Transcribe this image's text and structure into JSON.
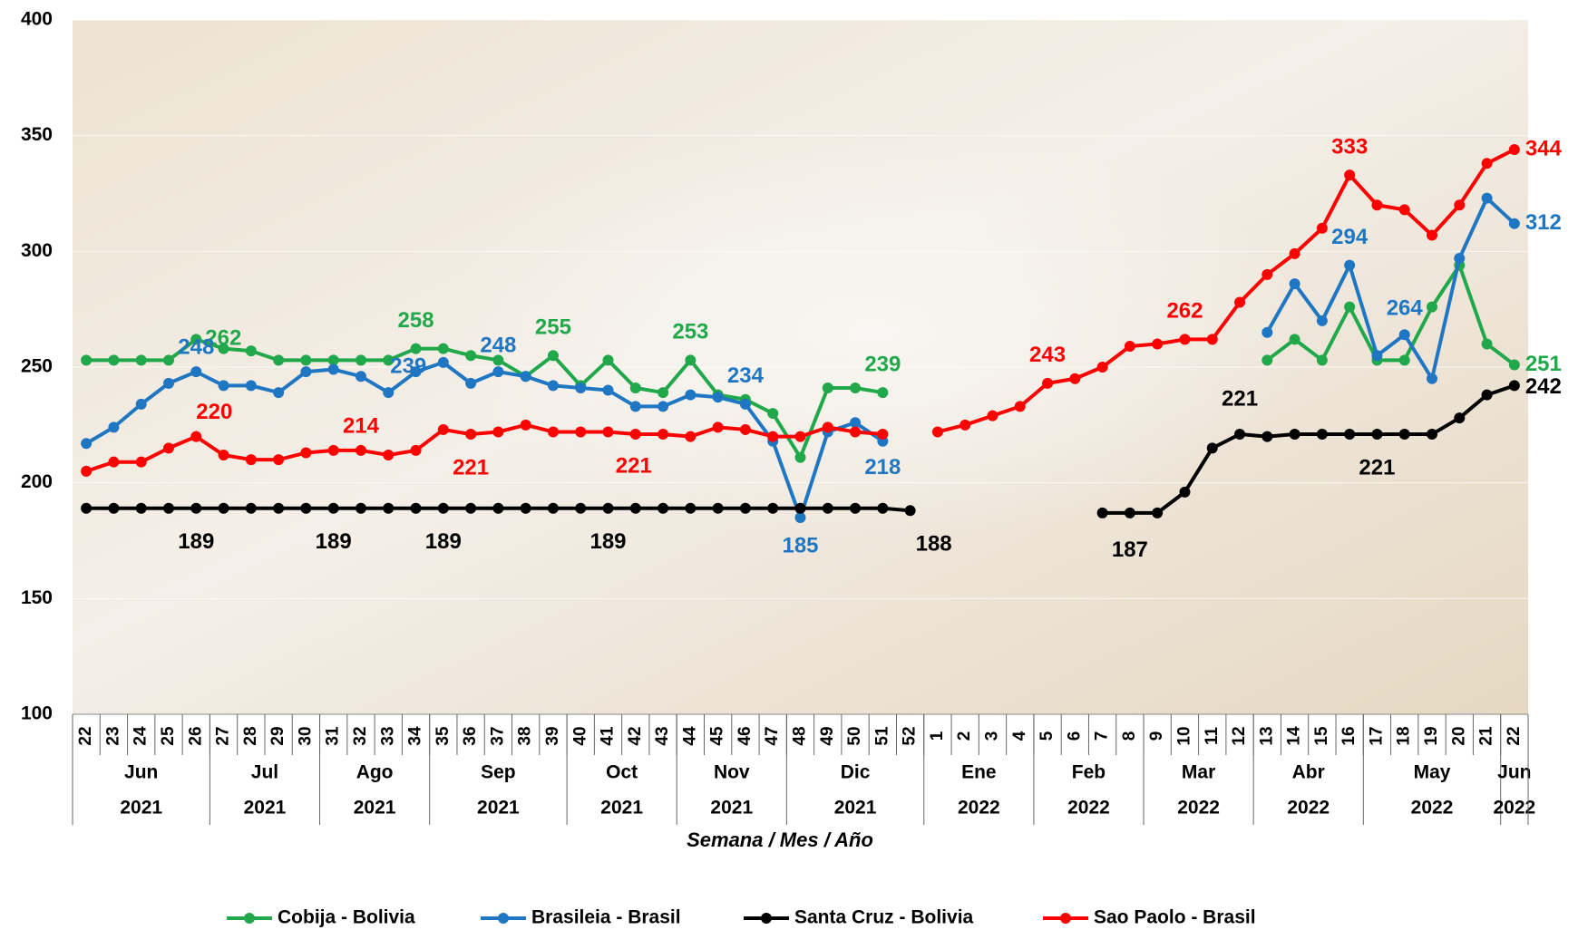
{
  "chart_data": {
    "type": "line",
    "x_label": "Semana / Mes / Año",
    "groups": [
      {
        "month": "Jun",
        "year": "2021",
        "weeks": [
          "22",
          "23",
          "24",
          "25",
          "26"
        ]
      },
      {
        "month": "Jul",
        "year": "2021",
        "weeks": [
          "27",
          "28",
          "29",
          "30"
        ]
      },
      {
        "month": "Ago",
        "year": "2021",
        "weeks": [
          "31",
          "32",
          "33",
          "34"
        ]
      },
      {
        "month": "Sep",
        "year": "2021",
        "weeks": [
          "35",
          "36",
          "37",
          "38",
          "39"
        ]
      },
      {
        "month": "Oct",
        "year": "2021",
        "weeks": [
          "40",
          "41",
          "42",
          "43"
        ]
      },
      {
        "month": "Nov",
        "year": "2021",
        "weeks": [
          "44",
          "45",
          "46",
          "47"
        ]
      },
      {
        "month": "Dic",
        "year": "2021",
        "weeks": [
          "48",
          "49",
          "50",
          "51",
          "52"
        ]
      },
      {
        "month": "Ene",
        "year": "2022",
        "weeks": [
          "1",
          "2",
          "3",
          "4"
        ]
      },
      {
        "month": "Feb",
        "year": "2022",
        "weeks": [
          "5",
          "6",
          "7",
          "8"
        ]
      },
      {
        "month": "Mar",
        "year": "2022",
        "weeks": [
          "9",
          "10",
          "11",
          "12"
        ]
      },
      {
        "month": "Abr",
        "year": "2022",
        "weeks": [
          "13",
          "14",
          "15",
          "16"
        ]
      },
      {
        "month": "May",
        "year": "2022",
        "weeks": [
          "17",
          "18",
          "19",
          "20",
          "21"
        ]
      },
      {
        "month": "Jun",
        "year": "2022",
        "weeks": [
          "22"
        ]
      }
    ],
    "ylim": [
      100,
      400
    ],
    "yticks": [
      100,
      150,
      200,
      250,
      300,
      350,
      400
    ],
    "grid": true,
    "legend": "bottom",
    "series": [
      {
        "name": "Cobija - Bolivia",
        "color": "#21a84a",
        "values": [
          253,
          253,
          253,
          253,
          262,
          258,
          257,
          253,
          253,
          253,
          253,
          253,
          258,
          258,
          255,
          253,
          246,
          255,
          242,
          253,
          241,
          239,
          253,
          238,
          236,
          230,
          211,
          241,
          241,
          239,
          null,
          null,
          null,
          null,
          null,
          null,
          null,
          null,
          null,
          null,
          null,
          null,
          null,
          253,
          262,
          253,
          276,
          253,
          253,
          276,
          294,
          260,
          251
        ],
        "value_labels": [
          null,
          null,
          null,
          null,
          "262",
          null,
          null,
          null,
          null,
          null,
          null,
          null,
          "258",
          null,
          null,
          null,
          null,
          "255",
          null,
          null,
          null,
          null,
          "253",
          null,
          null,
          null,
          null,
          null,
          null,
          "239",
          null,
          null,
          null,
          null,
          null,
          null,
          null,
          null,
          null,
          null,
          null,
          null,
          null,
          null,
          null,
          null,
          null,
          null,
          null,
          null,
          null,
          null,
          "251"
        ]
      },
      {
        "name": "Brasileia - Brasil",
        "color": "#1f77c4",
        "values": [
          217,
          224,
          234,
          243,
          248,
          242,
          242,
          239,
          248,
          249,
          246,
          239,
          248,
          252,
          243,
          248,
          246,
          242,
          241,
          240,
          233,
          233,
          238,
          237,
          234,
          218,
          185,
          222,
          226,
          218,
          null,
          null,
          null,
          null,
          null,
          null,
          null,
          null,
          null,
          null,
          null,
          null,
          null,
          265,
          286,
          270,
          294,
          255,
          264,
          245,
          297,
          323,
          312
        ],
        "value_labels": [
          null,
          null,
          null,
          null,
          "248",
          null,
          null,
          null,
          null,
          null,
          null,
          "239",
          null,
          null,
          null,
          "248",
          null,
          null,
          null,
          null,
          null,
          null,
          null,
          null,
          "234",
          null,
          "185",
          null,
          null,
          "218",
          null,
          null,
          null,
          null,
          null,
          null,
          null,
          null,
          null,
          null,
          null,
          null,
          null,
          null,
          null,
          null,
          "294",
          null,
          "264",
          null,
          null,
          null,
          "312"
        ]
      },
      {
        "name": "Santa Cruz - Bolivia",
        "color": "#000000",
        "values": [
          189,
          189,
          189,
          189,
          189,
          189,
          189,
          189,
          189,
          189,
          189,
          189,
          189,
          189,
          189,
          189,
          189,
          189,
          189,
          189,
          189,
          189,
          189,
          189,
          189,
          189,
          189,
          189,
          189,
          189,
          188,
          null,
          null,
          null,
          null,
          null,
          null,
          187,
          187,
          187,
          196,
          215,
          221,
          220,
          221,
          221,
          221,
          221,
          221,
          221,
          228,
          238,
          242
        ],
        "value_labels": [
          null,
          null,
          null,
          null,
          "189",
          null,
          null,
          null,
          null,
          "189",
          null,
          null,
          null,
          "189",
          null,
          null,
          null,
          null,
          null,
          "189",
          null,
          null,
          null,
          null,
          null,
          null,
          null,
          null,
          null,
          null,
          "188",
          null,
          null,
          null,
          null,
          null,
          null,
          null,
          "187",
          null,
          null,
          null,
          "221",
          null,
          null,
          null,
          null,
          "221",
          null,
          null,
          null,
          null,
          "242"
        ]
      },
      {
        "name": "Sao Paolo - Brasil",
        "color": "#ff0000",
        "values": [
          205,
          209,
          209,
          215,
          220,
          212,
          210,
          210,
          213,
          214,
          214,
          212,
          214,
          223,
          221,
          222,
          225,
          222,
          222,
          222,
          221,
          221,
          220,
          224,
          223,
          220,
          220,
          224,
          222,
          221,
          null,
          222,
          225,
          229,
          233,
          243,
          245,
          250,
          259,
          260,
          262,
          262,
          278,
          290,
          299,
          310,
          333,
          320,
          318,
          307,
          320,
          338,
          344
        ],
        "value_labels": [
          null,
          null,
          null,
          null,
          "220",
          null,
          null,
          null,
          null,
          null,
          "214",
          null,
          null,
          null,
          "221",
          null,
          null,
          null,
          null,
          null,
          "221",
          null,
          null,
          null,
          null,
          null,
          null,
          null,
          null,
          null,
          null,
          null,
          null,
          null,
          null,
          "243",
          null,
          null,
          null,
          null,
          "262",
          null,
          null,
          null,
          null,
          null,
          "333",
          null,
          null,
          null,
          null,
          null,
          "344"
        ]
      }
    ]
  }
}
